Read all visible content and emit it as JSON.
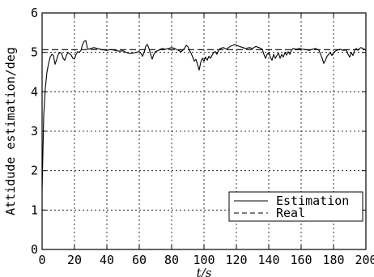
{
  "chart_data": {
    "type": "line",
    "xlabel": "t/s",
    "ylabel": "Attidude estimation/deg",
    "xlim": [
      0,
      200
    ],
    "ylim": [
      0,
      6
    ],
    "xticks": [
      "0",
      "20",
      "40",
      "60",
      "80",
      "100",
      "120",
      "140",
      "160",
      "180",
      "200"
    ],
    "yticks": [
      "0",
      "1",
      "2",
      "3",
      "4",
      "5",
      "6"
    ],
    "grid": true,
    "legend_position": "lower-right",
    "series": [
      {
        "name": "Estimation",
        "style": "solid",
        "color": "#000000",
        "points": [
          [
            0,
            1.5
          ],
          [
            1,
            3.4
          ],
          [
            2,
            4.1
          ],
          [
            3,
            4.5
          ],
          [
            4,
            4.72
          ],
          [
            5,
            4.88
          ],
          [
            6,
            4.95
          ],
          [
            7,
            4.92
          ],
          [
            8,
            4.7
          ],
          [
            9,
            4.82
          ],
          [
            10,
            4.95
          ],
          [
            11,
            5.0
          ],
          [
            12,
            4.98
          ],
          [
            13,
            4.85
          ],
          [
            14,
            4.8
          ],
          [
            15,
            4.92
          ],
          [
            16,
            5.0
          ],
          [
            17,
            4.96
          ],
          [
            18,
            4.93
          ],
          [
            19,
            4.85
          ],
          [
            20,
            4.83
          ],
          [
            21,
            4.95
          ],
          [
            22,
            5.02
          ],
          [
            23,
            5.0
          ],
          [
            24,
            5.05
          ],
          [
            25,
            5.2
          ],
          [
            26,
            5.28
          ],
          [
            27,
            5.3
          ],
          [
            28,
            5.1
          ],
          [
            29,
            5.08
          ],
          [
            30,
            5.1
          ],
          [
            32,
            5.12
          ],
          [
            34,
            5.1
          ],
          [
            36,
            5.08
          ],
          [
            38,
            5.06
          ],
          [
            40,
            5.05
          ],
          [
            42,
            5.07
          ],
          [
            44,
            5.06
          ],
          [
            46,
            5.04
          ],
          [
            48,
            5.03
          ],
          [
            50,
            5.04
          ],
          [
            52,
            5.0
          ],
          [
            54,
            4.97
          ],
          [
            56,
            4.98
          ],
          [
            58,
            5.0
          ],
          [
            60,
            5.02
          ],
          [
            61,
            4.98
          ],
          [
            62,
            4.9
          ],
          [
            63,
            5.0
          ],
          [
            64,
            5.15
          ],
          [
            65,
            5.2
          ],
          [
            66,
            5.1
          ],
          [
            67,
            4.95
          ],
          [
            68,
            4.83
          ],
          [
            69,
            4.95
          ],
          [
            70,
            5.02
          ],
          [
            72,
            5.05
          ],
          [
            74,
            5.1
          ],
          [
            76,
            5.08
          ],
          [
            78,
            5.1
          ],
          [
            80,
            5.12
          ],
          [
            82,
            5.1
          ],
          [
            84,
            5.05
          ],
          [
            86,
            5.02
          ],
          [
            88,
            5.1
          ],
          [
            89,
            5.18
          ],
          [
            90,
            5.15
          ],
          [
            91,
            5.05
          ],
          [
            92,
            4.98
          ],
          [
            93,
            4.88
          ],
          [
            94,
            4.78
          ],
          [
            95,
            4.82
          ],
          [
            96,
            4.7
          ],
          [
            97,
            4.55
          ],
          [
            98,
            4.75
          ],
          [
            99,
            4.85
          ],
          [
            100,
            4.78
          ],
          [
            101,
            4.88
          ],
          [
            102,
            4.8
          ],
          [
            103,
            4.9
          ],
          [
            104,
            4.85
          ],
          [
            105,
            4.93
          ],
          [
            106,
            5.0
          ],
          [
            107,
            5.02
          ],
          [
            108,
            4.95
          ],
          [
            109,
            5.05
          ],
          [
            110,
            5.1
          ],
          [
            112,
            5.12
          ],
          [
            114,
            5.08
          ],
          [
            116,
            5.15
          ],
          [
            118,
            5.18
          ],
          [
            119,
            5.2
          ],
          [
            120,
            5.18
          ],
          [
            122,
            5.15
          ],
          [
            124,
            5.12
          ],
          [
            126,
            5.1
          ],
          [
            128,
            5.12
          ],
          [
            130,
            5.1
          ],
          [
            132,
            5.15
          ],
          [
            134,
            5.12
          ],
          [
            136,
            5.08
          ],
          [
            137,
            4.95
          ],
          [
            138,
            4.85
          ],
          [
            139,
            4.95
          ],
          [
            140,
            5.0
          ],
          [
            141,
            4.88
          ],
          [
            142,
            4.8
          ],
          [
            143,
            4.95
          ],
          [
            144,
            4.85
          ],
          [
            145,
            4.92
          ],
          [
            146,
            4.98
          ],
          [
            147,
            4.85
          ],
          [
            148,
            4.95
          ],
          [
            149,
            4.88
          ],
          [
            150,
            5.0
          ],
          [
            151,
            4.93
          ],
          [
            152,
            5.02
          ],
          [
            153,
            4.95
          ],
          [
            154,
            5.05
          ],
          [
            155,
            5.1
          ],
          [
            157,
            5.08
          ],
          [
            159,
            5.1
          ],
          [
            161,
            5.08
          ],
          [
            163,
            5.07
          ],
          [
            165,
            5.05
          ],
          [
            167,
            5.08
          ],
          [
            169,
            5.1
          ],
          [
            171,
            5.05
          ],
          [
            172,
            4.95
          ],
          [
            173,
            4.85
          ],
          [
            174,
            4.72
          ],
          [
            175,
            4.8
          ],
          [
            176,
            4.9
          ],
          [
            177,
            4.95
          ],
          [
            178,
            5.0
          ],
          [
            179,
            4.92
          ],
          [
            180,
            5.0
          ],
          [
            182,
            5.05
          ],
          [
            184,
            5.08
          ],
          [
            186,
            5.05
          ],
          [
            188,
            5.06
          ],
          [
            189,
            4.95
          ],
          [
            190,
            4.88
          ],
          [
            191,
            5.0
          ],
          [
            192,
            4.92
          ],
          [
            193,
            5.05
          ],
          [
            194,
            5.1
          ],
          [
            195,
            5.05
          ],
          [
            196,
            5.1
          ],
          [
            197,
            5.12
          ],
          [
            198,
            5.1
          ],
          [
            199,
            5.08
          ],
          [
            200,
            5.05
          ]
        ]
      },
      {
        "name": "Real",
        "style": "dashed",
        "color": "#000000",
        "points": [
          [
            0,
            5.07
          ],
          [
            200,
            5.07
          ]
        ]
      }
    ]
  }
}
